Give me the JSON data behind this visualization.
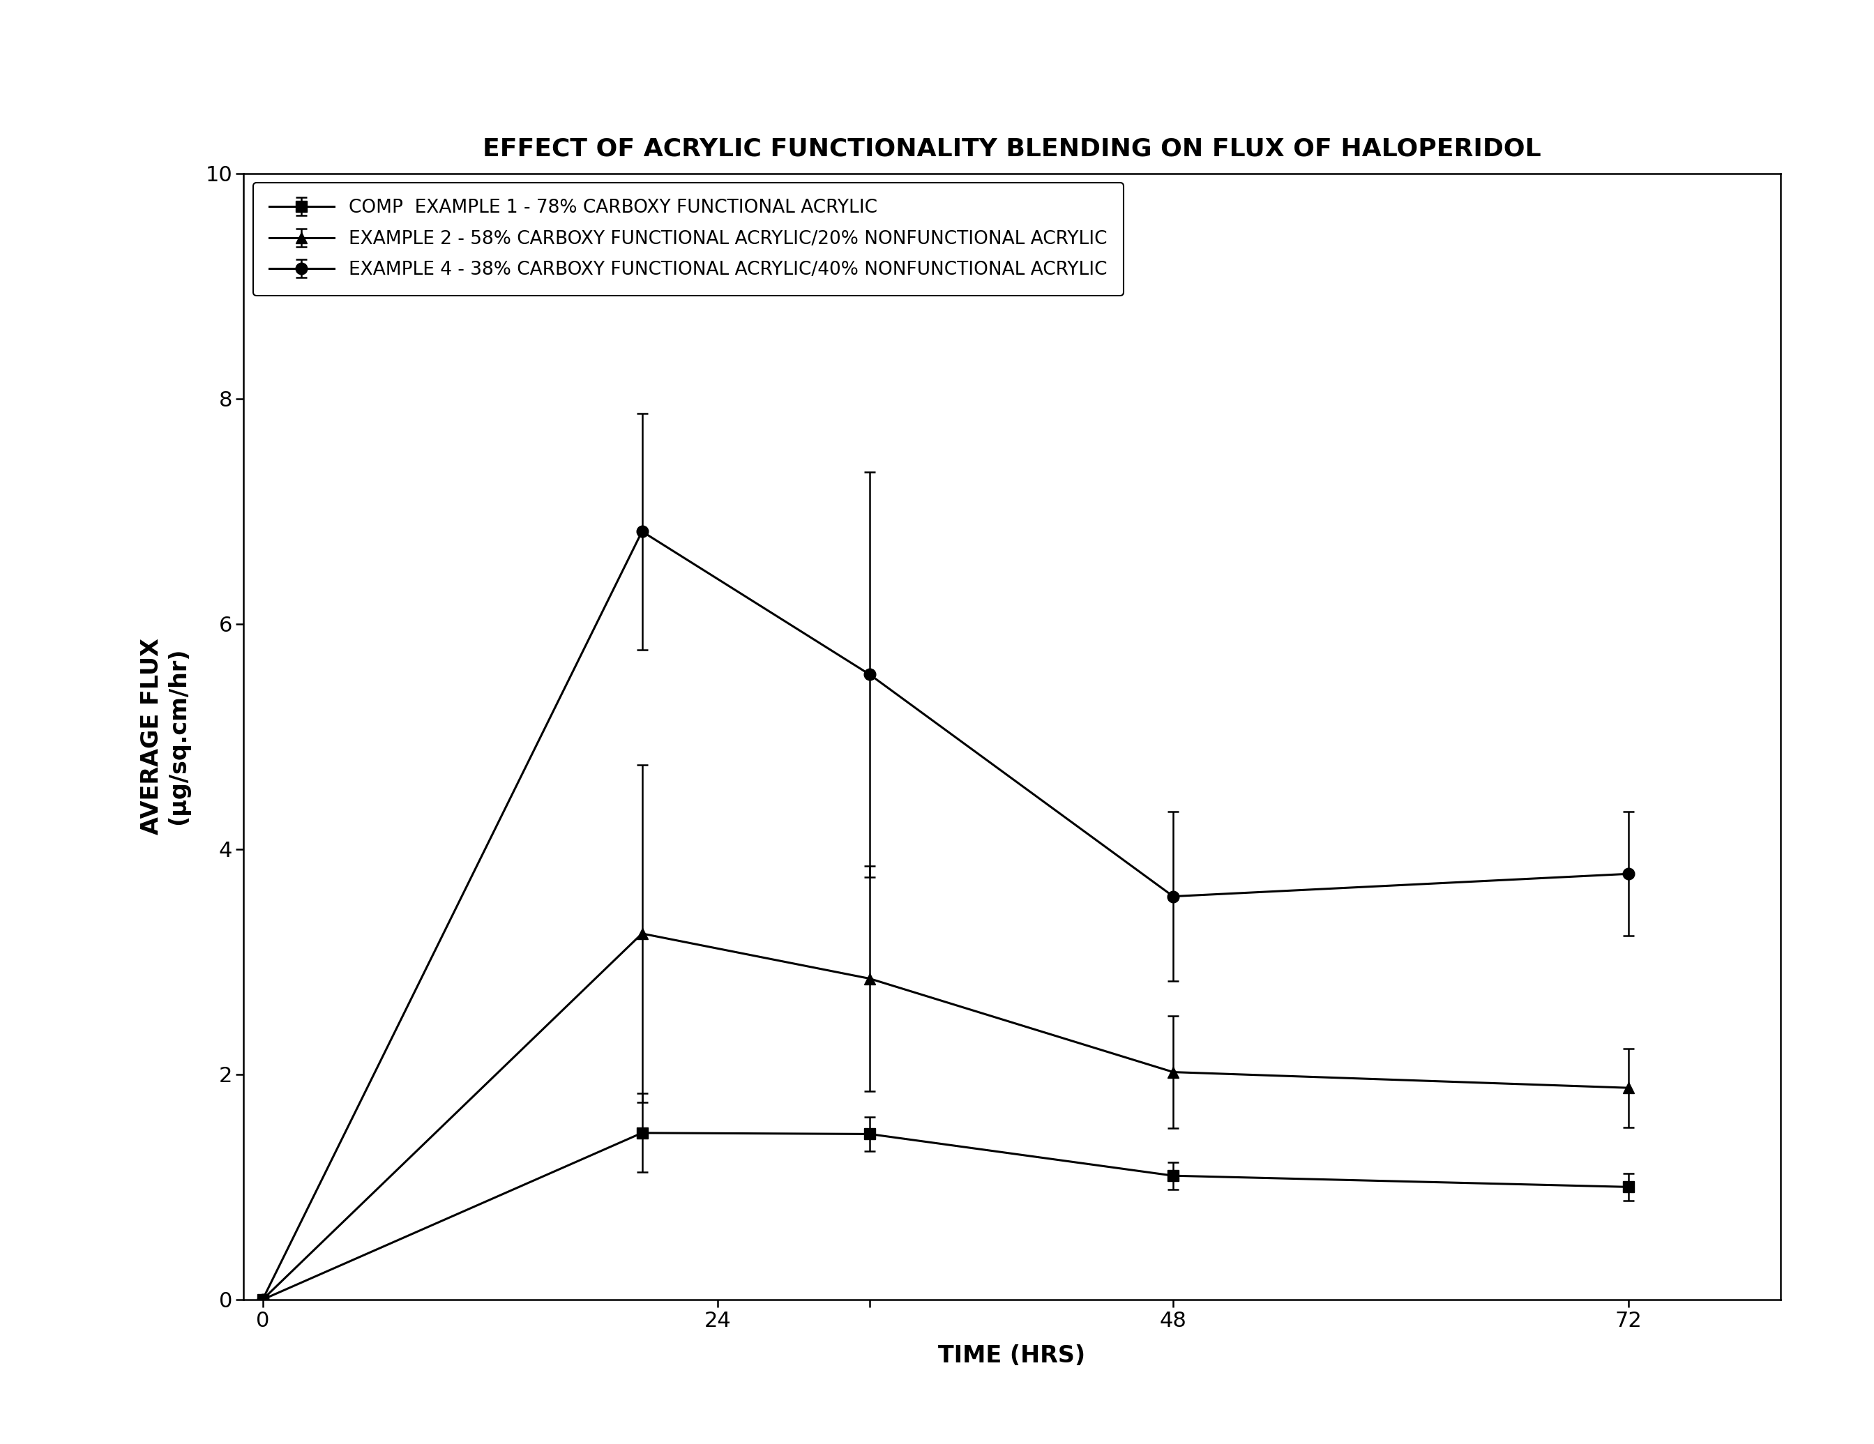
{
  "title": "EFFECT OF ACRYLIC FUNCTIONALITY BLENDING ON FLUX OF HALOPERIDOL",
  "xlabel": "TIME (HRS)",
  "ylabel_line1": "AVERAGE FLUX",
  "ylabel_line2": "(μg/sq.cm/hr)",
  "xlim": [
    -1,
    80
  ],
  "ylim": [
    0,
    10
  ],
  "xticks": [
    0,
    24,
    32,
    48,
    72
  ],
  "xtick_labels": [
    "0",
    "24",
    "",
    "48",
    "72"
  ],
  "yticks": [
    0,
    2,
    4,
    6,
    8,
    10
  ],
  "series": [
    {
      "label": "COMP  EXAMPLE 1 - 78% CARBOXY FUNCTIONAL ACRYLIC",
      "marker": "s",
      "x": [
        0,
        20,
        32,
        48,
        72
      ],
      "y": [
        0,
        1.48,
        1.47,
        1.1,
        1.0
      ],
      "yerr": [
        0,
        0.35,
        0.15,
        0.12,
        0.12
      ]
    },
    {
      "label": "EXAMPLE 2 - 58% CARBOXY FUNCTIONAL ACRYLIC/20% NONFUNCTIONAL ACRYLIC",
      "marker": "^",
      "x": [
        0,
        20,
        32,
        48,
        72
      ],
      "y": [
        0,
        3.25,
        2.85,
        2.02,
        1.88
      ],
      "yerr": [
        0,
        1.5,
        1.0,
        0.5,
        0.35
      ]
    },
    {
      "label": "EXAMPLE 4 - 38% CARBOXY FUNCTIONAL ACRYLIC/40% NONFUNCTIONAL ACRYLIC",
      "marker": "o",
      "x": [
        0,
        20,
        32,
        48,
        72
      ],
      "y": [
        0,
        6.82,
        5.55,
        3.58,
        3.78
      ],
      "yerr": [
        0,
        1.05,
        1.8,
        0.75,
        0.55
      ]
    }
  ],
  "line_color": "#000000",
  "marker_color": "#000000",
  "marker_size": 12,
  "line_width": 2.2,
  "background_color": "#ffffff",
  "title_fontsize": 26,
  "axis_label_fontsize": 24,
  "tick_fontsize": 22,
  "legend_fontsize": 19
}
